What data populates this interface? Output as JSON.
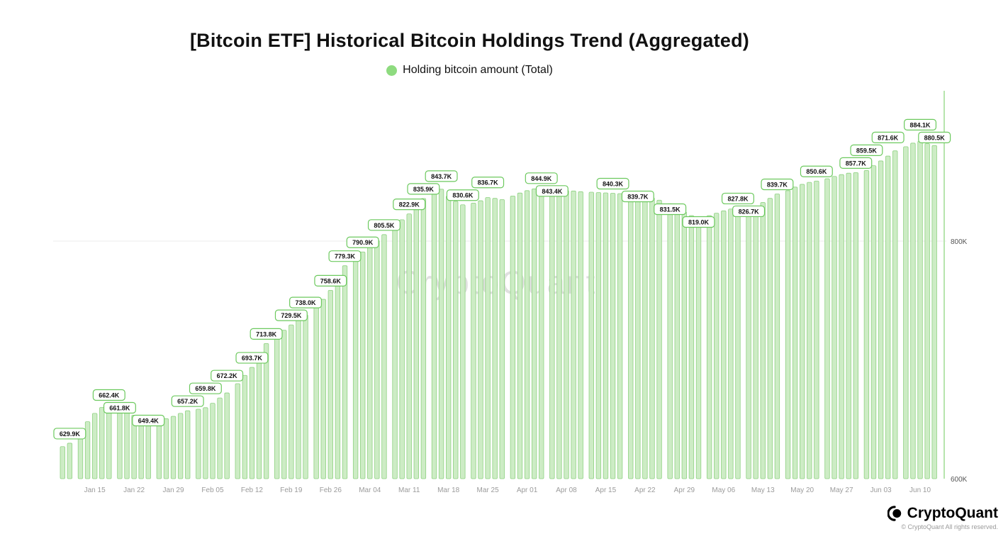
{
  "chart_data": {
    "type": "bar",
    "title": "[Bitcoin ETF] Historical Bitcoin Holdings Trend (Aggregated)",
    "legend": "Holding bitcoin amount (Total)",
    "values_unit": "K",
    "ylim_k": [
      600,
      925
    ],
    "y_axis_side": "right",
    "grid": "horizontal-at-800K",
    "y_ticks": [
      {
        "label": "800K",
        "value": 800
      },
      {
        "label": "600K",
        "value": 600
      }
    ],
    "x_tick_labels": [
      "Jan 15",
      "Jan 22",
      "Jan 29",
      "Feb 05",
      "Feb 12",
      "Feb 19",
      "Feb 26",
      "Mar 04",
      "Mar 11",
      "Mar 18",
      "Mar 25",
      "Apr 01",
      "Apr 08",
      "Apr 15",
      "Apr 22",
      "Apr 29",
      "May 06",
      "May 13",
      "May 20",
      "May 27",
      "Jun 03",
      "Jun 10"
    ],
    "weeks": [
      [
        627.0,
        629.9
      ],
      [
        639.0,
        648.0,
        655.0,
        660.0,
        662.4
      ],
      [
        661.8,
        657.5,
        653.5,
        651.0,
        649.4
      ],
      [
        648.5,
        650.5,
        652.5,
        655.0,
        657.2
      ],
      [
        658.5,
        659.8,
        663.5,
        668.0,
        672.2
      ],
      [
        680.0,
        687.0,
        693.7,
        705.0,
        713.8
      ],
      [
        720.0,
        725.0,
        729.5,
        733.5,
        738.0
      ],
      [
        744.0,
        751.0,
        758.6,
        768.0,
        779.3
      ],
      [
        783.5,
        790.9,
        796.0,
        800.5,
        805.5
      ],
      [
        812.0,
        818.0,
        822.9,
        829.0,
        835.9
      ],
      [
        840.5,
        843.7,
        838.0,
        833.5,
        830.6
      ],
      [
        832.0,
        834.0,
        836.7,
        836.0,
        835.0
      ],
      [
        838.0,
        840.5,
        842.5,
        844.0,
        844.9
      ],
      [
        843.4,
        843.1,
        842.7,
        842.2,
        841.6
      ],
      [
        841.2,
        840.9,
        840.6,
        840.3,
        840.0
      ],
      [
        839.9,
        839.7,
        838.3,
        836.5,
        834.5
      ],
      [
        831.5,
        828.0,
        824.5,
        821.5,
        819.0
      ],
      [
        821.5,
        823.5,
        825.5,
        827.0,
        827.8
      ],
      [
        826.7,
        829.5,
        832.5,
        836.0,
        839.7
      ],
      [
        842.5,
        845.5,
        847.8,
        849.5,
        850.6
      ],
      [
        852.5,
        854.5,
        856.0,
        857.2,
        857.7
      ],
      [
        859.5,
        863.5,
        867.5,
        871.6,
        876.0
      ],
      [
        879.5,
        882.5,
        884.1,
        882.0,
        880.5
      ]
    ],
    "labels": [
      {
        "bar": 1,
        "text": "629.9K"
      },
      {
        "bar": 6,
        "text": "662.4K"
      },
      {
        "bar": 7,
        "text": "661.8K"
      },
      {
        "bar": 11,
        "text": "649.4K"
      },
      {
        "bar": 16,
        "text": "657.2K"
      },
      {
        "bar": 18,
        "text": "659.8K"
      },
      {
        "bar": 21,
        "text": "672.2K"
      },
      {
        "bar": 24,
        "text": "693.7K"
      },
      {
        "bar": 26,
        "text": "713.8K"
      },
      {
        "bar": 29,
        "text": "729.5K"
      },
      {
        "bar": 31,
        "text": "738.0K"
      },
      {
        "bar": 34,
        "text": "758.6K"
      },
      {
        "bar": 36,
        "text": "779.3K"
      },
      {
        "bar": 38,
        "text": "790.9K"
      },
      {
        "bar": 41,
        "text": "805.5K"
      },
      {
        "bar": 44,
        "text": "822.9K"
      },
      {
        "bar": 46,
        "text": "835.9K"
      },
      {
        "bar": 48,
        "text": "843.7K"
      },
      {
        "bar": 51,
        "text": "830.6K"
      },
      {
        "bar": 54,
        "text": "836.7K"
      },
      {
        "bar": 61,
        "text": "844.9K"
      },
      {
        "bar": 62,
        "text": "843.4K"
      },
      {
        "bar": 70,
        "text": "840.3K"
      },
      {
        "bar": 73,
        "text": "839.7K"
      },
      {
        "bar": 77,
        "text": "831.5K"
      },
      {
        "bar": 81,
        "text": "819.0K"
      },
      {
        "bar": 86,
        "text": "827.8K"
      },
      {
        "bar": 87,
        "text": "826.7K"
      },
      {
        "bar": 91,
        "text": "839.7K"
      },
      {
        "bar": 96,
        "text": "850.6K"
      },
      {
        "bar": 101,
        "text": "857.7K"
      },
      {
        "bar": 102,
        "text": "859.5K"
      },
      {
        "bar": 105,
        "text": "871.6K"
      },
      {
        "bar": 109,
        "text": "884.1K"
      },
      {
        "bar": 111,
        "text": "880.5K"
      }
    ]
  },
  "watermark": "CryptoQuant",
  "footer": {
    "brand": "CryptoQuant",
    "copyright": "© CryptoQuant All rights reserved."
  },
  "colors": {
    "bar_fill": "#cdecc5",
    "bar_stroke": "#8fd282",
    "callout_border": "#6cc95e",
    "callout_text": "#111111",
    "legend_dot": "#8edb7f",
    "gridline": "#ececec",
    "axis_line": "#b7e5ad",
    "x_tick_text": "#9b9b9b",
    "y_tick_text": "#555555",
    "watermark": "#e0e0e0"
  }
}
